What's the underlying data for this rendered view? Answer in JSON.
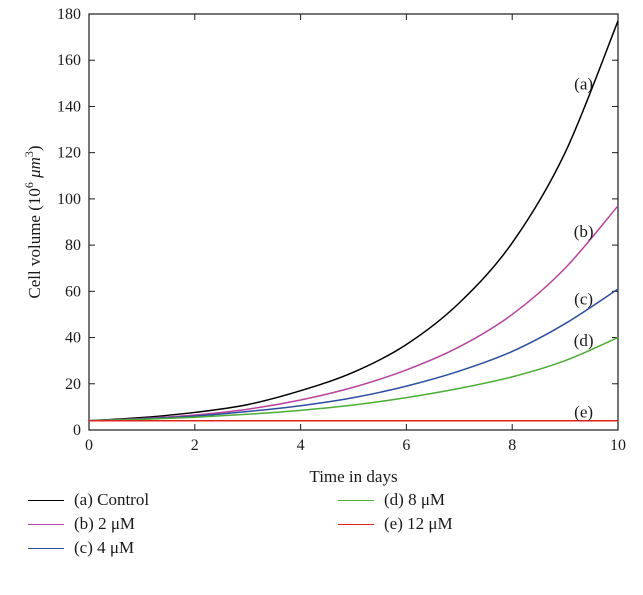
{
  "chart_data": {
    "type": "line",
    "xlabel": "Time in days",
    "ylabel": "Cell volume (10",
    "ylabel_sup": "6",
    "ylabel_unit": " μm",
    "ylabel_unit_sup": "3",
    "ylabel_close": ")",
    "xlim": [
      0,
      10
    ],
    "ylim": [
      0,
      180
    ],
    "xticks": [
      0,
      2,
      4,
      6,
      8,
      10
    ],
    "yticks": [
      0,
      20,
      40,
      60,
      80,
      100,
      120,
      140,
      160,
      180
    ],
    "grid": false,
    "legend_position": "bottom",
    "series": [
      {
        "name": "(a) Control",
        "label": "(a)",
        "color": "#000000",
        "x": [
          0,
          1,
          2,
          3,
          4,
          5,
          6,
          7,
          8,
          9,
          10
        ],
        "y": [
          4,
          5.4,
          7.6,
          11,
          17,
          25,
          37,
          55,
          81,
          120,
          177
        ]
      },
      {
        "name": "(b) 2 μM",
        "label": "(b)",
        "color": "#b8439c",
        "x": [
          0,
          1,
          2,
          3,
          4,
          5,
          6,
          7,
          8,
          9,
          10
        ],
        "y": [
          4,
          5,
          6.5,
          9,
          13,
          18.5,
          26,
          36,
          50,
          70,
          97
        ]
      },
      {
        "name": "(c) 4 μM",
        "label": "(c)",
        "color": "#2c4ea0",
        "x": [
          0,
          1,
          2,
          3,
          4,
          5,
          6,
          7,
          8,
          9,
          10
        ],
        "y": [
          4,
          4.8,
          6,
          8,
          10.5,
          14,
          19,
          25.5,
          34,
          46,
          61
        ]
      },
      {
        "name": "(d) 8 μM",
        "label": "(d)",
        "color": "#4aae35",
        "x": [
          0,
          1,
          2,
          3,
          4,
          5,
          6,
          7,
          8,
          9,
          10
        ],
        "y": [
          4,
          4.6,
          5.5,
          6.8,
          8.5,
          10.8,
          14,
          18,
          23,
          30,
          40
        ]
      },
      {
        "name": "(e) 12 μM",
        "label": "(e)",
        "color": "#e2231a",
        "x": [
          0,
          10
        ],
        "y": [
          4,
          4
        ]
      }
    ]
  }
}
